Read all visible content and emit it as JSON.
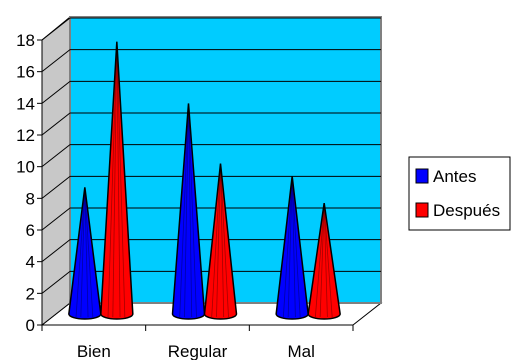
{
  "chart_data": {
    "type": "bar",
    "bar_shape": "cone",
    "three_d": true,
    "title": "",
    "xlabel": "",
    "ylabel": "",
    "categories": [
      "Bien",
      "Regular",
      "Mal"
    ],
    "series": [
      {
        "name": "Antes",
        "values": [
          8,
          13.3,
          8.7
        ],
        "color": "#0000ff"
      },
      {
        "name": "Después",
        "values": [
          17.2,
          9.5,
          7
        ],
        "color": "#ff0000"
      }
    ],
    "ylim": [
      0,
      18
    ],
    "yticks": [
      0,
      2,
      4,
      6,
      8,
      10,
      12,
      14,
      16,
      18
    ],
    "grid": true,
    "wall_color": "#00ccff",
    "legend_position": "right"
  }
}
